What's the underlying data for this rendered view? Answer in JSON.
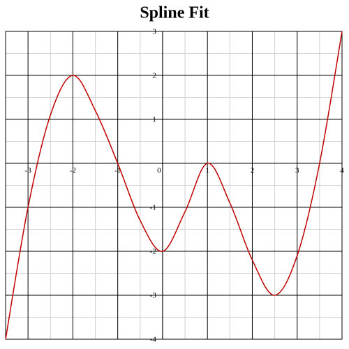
{
  "chart_data": {
    "type": "line",
    "title": "Spline Fit",
    "x": [
      -3.5,
      -3,
      -2.5,
      -2,
      -1.5,
      -1,
      -0.5,
      0,
      0.5,
      1,
      1.5,
      2,
      2.5,
      3,
      3.5,
      4
    ],
    "values": [
      -4,
      -1,
      1.1,
      2,
      1.2,
      0,
      -1.3,
      -2,
      -1.1,
      0,
      -0.9,
      -2.2,
      -3,
      -2.1,
      0,
      3
    ],
    "color": "#c00000",
    "xlim": [
      -3.5,
      4
    ],
    "ylim": [
      -4,
      3
    ],
    "xticks": [
      -3,
      -2,
      -1,
      0,
      1,
      2,
      3,
      4
    ],
    "yticks": [
      -4,
      -3,
      -2,
      -1,
      1,
      2,
      3
    ],
    "grid": true,
    "minor_grid": true
  }
}
